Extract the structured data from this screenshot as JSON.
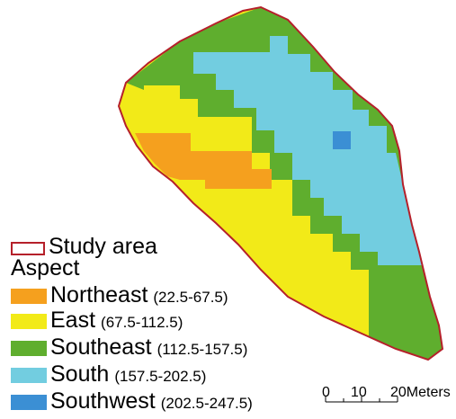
{
  "legend": {
    "study_area_label": "Study area",
    "heading": "Aspect",
    "classes": [
      {
        "name": "Northeast",
        "range": "(22.5-67.5)",
        "color": "#f5a01e"
      },
      {
        "name": "East",
        "range": "(67.5-112.5)",
        "color": "#f2ea18"
      },
      {
        "name": "Southeast",
        "range": "(112.5-157.5)",
        "color": "#5fae2e"
      },
      {
        "name": "South",
        "range": "(157.5-202.5)",
        "color": "#72cde0"
      },
      {
        "name": "Southwest",
        "range": "(202.5-247.5)",
        "color": "#3b8fd4"
      }
    ]
  },
  "scale_bar": {
    "labels": [
      "0",
      "10",
      "20Meters"
    ]
  },
  "colors": {
    "boundary": "#b5202a"
  }
}
